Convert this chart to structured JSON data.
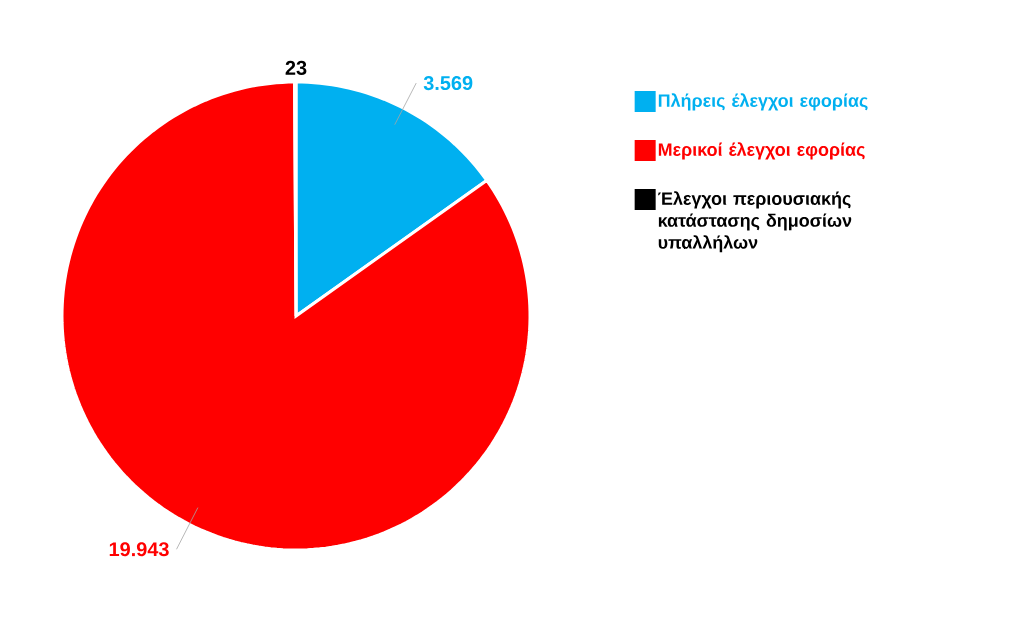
{
  "chart_data": {
    "type": "pie",
    "categories": [
      "Πλήρεις έλεγχοι εφορίας",
      "Μερικοί έλεγχοι εφορίας",
      "Έλεγχοι περιουσιακής κατάστασης δημοσίων υπαλλήλων"
    ],
    "values": [
      3569,
      19943,
      23
    ],
    "value_labels": [
      "3.569",
      "19.943",
      "23"
    ],
    "colors": [
      "#00b0f0",
      "#ff0000",
      "#000000"
    ],
    "legend": "right"
  }
}
